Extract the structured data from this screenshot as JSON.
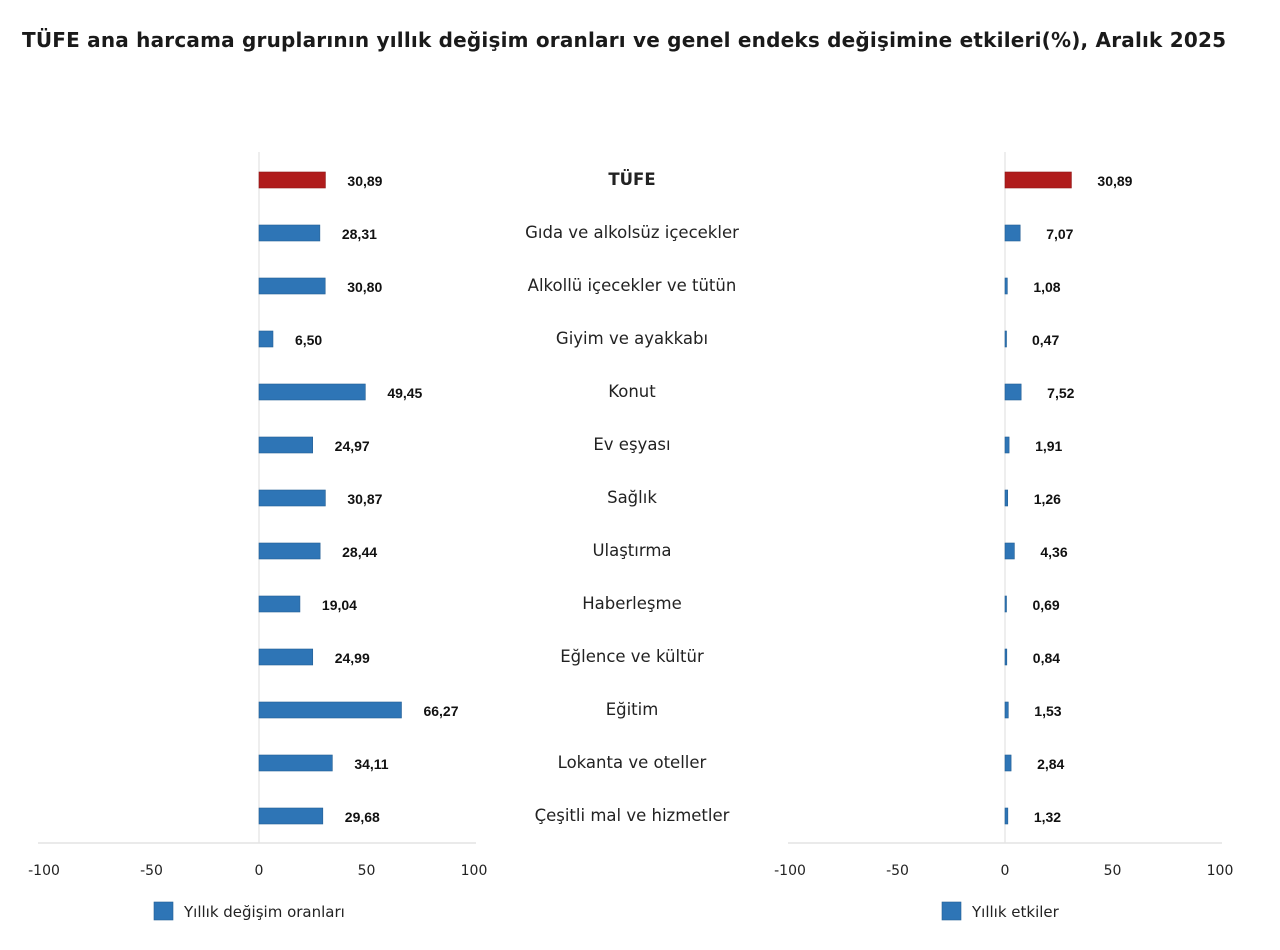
{
  "chart_data": {
    "type": "bar",
    "orientation": "horizontal",
    "title": "TÜFE ana harcama gruplarının yıllık değişim oranları ve genel endeks değişimine etkileri(%), Aralık 2025",
    "categories": [
      "TÜFE",
      "Gıda ve alkolsüz içecekler",
      "Alkollü içecekler ve tütün",
      "Giyim ve ayakkabı",
      "Konut",
      "Ev eşyası",
      "Sağlık",
      "Ulaştırma",
      "Haberleşme",
      "Eğlence ve kültür",
      "Eğitim",
      "Lokanta ve oteller",
      "Çeşitli mal ve hizmetler"
    ],
    "highlight_category": "TÜFE",
    "colors": {
      "series": "#2e75b6",
      "highlight": "#b01c1c",
      "axis": "#e3e3e3"
    },
    "panels": [
      {
        "name": "Yıllık değişim oranları",
        "values": [
          30.89,
          28.31,
          30.8,
          6.5,
          49.45,
          24.97,
          30.87,
          28.44,
          19.04,
          24.99,
          66.27,
          34.11,
          29.68
        ],
        "value_labels": [
          "30,89",
          "28,31",
          "30,80",
          "6,50",
          "49,45",
          "24,97",
          "30,87",
          "28,44",
          "19,04",
          "24,99",
          "66,27",
          "34,11",
          "29,68"
        ],
        "xlim": [
          -100,
          100
        ],
        "xticks": [
          -100,
          -50,
          0,
          50,
          100
        ],
        "xtick_labels": [
          "-100",
          "-50",
          "0",
          "50",
          "100"
        ],
        "legend": "Yıllık değişim oranları",
        "legend_placement": "bottom"
      },
      {
        "name": "Yıllık etkiler",
        "values": [
          30.89,
          7.07,
          1.08,
          0.47,
          7.52,
          1.91,
          1.26,
          4.36,
          0.69,
          0.84,
          1.53,
          2.84,
          1.32
        ],
        "value_labels": [
          "30,89",
          "7,07",
          "1,08",
          "0,47",
          "7,52",
          "1,91",
          "1,26",
          "4,36",
          "0,69",
          "0,84",
          "1,53",
          "2,84",
          "1,32"
        ],
        "xlim": [
          -100,
          100
        ],
        "xticks": [
          -100,
          -50,
          0,
          50,
          100
        ],
        "xtick_labels": [
          "-100",
          "-50",
          "0",
          "50",
          "100"
        ],
        "legend": "Yıllık etkiler",
        "legend_placement": "bottom"
      }
    ],
    "grid": false
  }
}
